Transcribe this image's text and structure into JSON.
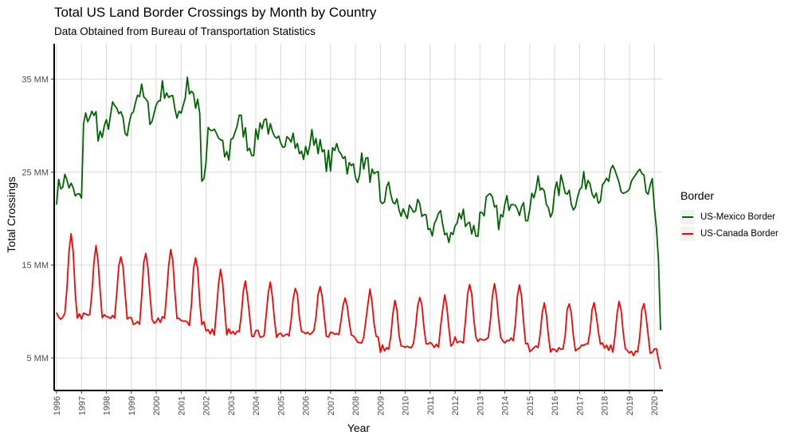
{
  "chart_data": {
    "type": "line",
    "title": "Total US Land Border Crossings by Month by Country",
    "subtitle": "Data Obtained from Bureau of Transportation Statistics",
    "xlabel": "Year",
    "ylabel": "Total Crossings",
    "xlim": [
      "1996-01",
      "2020-04"
    ],
    "ylim": [
      1500000,
      38800000
    ],
    "x_ticks": [
      "1996",
      "1997",
      "1998",
      "1999",
      "2000",
      "2001",
      "2002",
      "2003",
      "2004",
      "2005",
      "2006",
      "2007",
      "2008",
      "2009",
      "2010",
      "2011",
      "2012",
      "2013",
      "2014",
      "2015",
      "2016",
      "2017",
      "2018",
      "2019",
      "2020"
    ],
    "y_ticks": [
      5000000,
      15000000,
      25000000,
      35000000
    ],
    "y_tick_labels": [
      "5 MM",
      "15 MM",
      "25 MM",
      "35 MM"
    ],
    "grid": true,
    "legend_title": "Border",
    "legend_position": "right",
    "series": [
      {
        "name": "US-Mexico Border",
        "color": "#006400",
        "annual_means": [
          23.2,
          30.0,
          30.5,
          32.3,
          32.8,
          32.5,
          28.0,
          29.0,
          29.2,
          28.2,
          27.5,
          26.5,
          25.0,
          21.8,
          20.4,
          19.0,
          19.5,
          20.8,
          21.5,
          22.3,
          22.8,
          23.4,
          23.7,
          23.5
        ],
        "annual_amplitudes": [
          1.0,
          1.2,
          1.2,
          1.3,
          1.2,
          1.3,
          1.3,
          1.4,
          1.5,
          1.4,
          1.3,
          1.3,
          1.2,
          1.2,
          1.0,
          0.9,
          0.9,
          1.0,
          1.0,
          1.1,
          1.0,
          0.9,
          0.9,
          1.0
        ],
        "overrides": {
          "1997-01": 22.2,
          "1997-02": 30.2,
          "1997-08": 31.5,
          "2001-04": 35.2,
          "2001-11": 24.0,
          "2001-12": 24.3,
          "2002-01": 26.0,
          "2002-02": 29.8,
          "2019-12": 24.3,
          "2020-01": 21.2,
          "2020-02": 19.0,
          "2020-03": 15.5,
          "2020-04": 8.0
        }
      },
      {
        "name": "US-Canada Border",
        "color": "#ff0000",
        "annual_lows": [
          9.5,
          9.5,
          9.5,
          9.0,
          9.2,
          8.8,
          7.8,
          7.6,
          7.6,
          7.6,
          7.6,
          7.6,
          7.0,
          6.0,
          6.3,
          6.3,
          7.0,
          7.0,
          6.8,
          6.0,
          6.0,
          6.3,
          6.0,
          5.5,
          5.8
        ],
        "annual_peaks": [
          18.0,
          16.8,
          16.0,
          16.5,
          16.8,
          16.0,
          14.3,
          13.0,
          12.8,
          12.8,
          12.5,
          11.8,
          12.2,
          11.0,
          11.5,
          11.5,
          12.8,
          13.0,
          12.8,
          11.0,
          11.0,
          10.8,
          10.8,
          11.0
        ],
        "overrides": {
          "2020-02": 6.0,
          "2020-03": 4.8,
          "2020-04": 3.8
        }
      }
    ]
  }
}
